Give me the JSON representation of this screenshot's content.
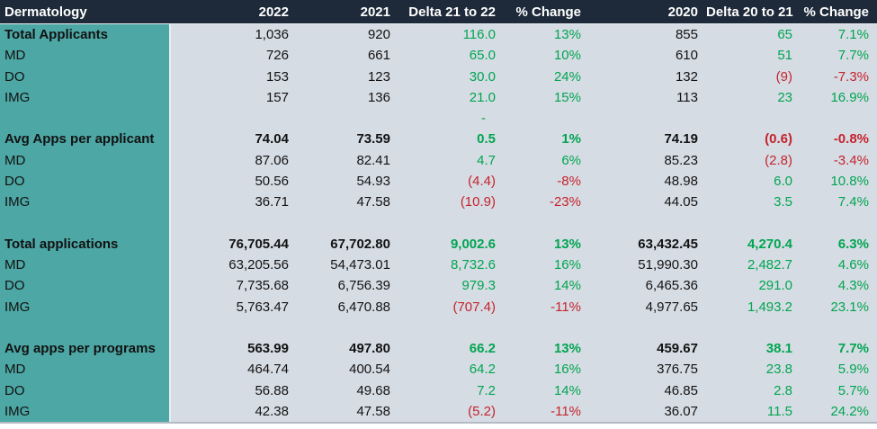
{
  "colors": {
    "header_bg": "#1E2A3A",
    "header_text": "#FFFFFF",
    "label_column_bg": "#4CA7A5",
    "body_bg": "#D6DCE4",
    "positive_text": "#00A550",
    "negative_text": "#C5232C",
    "default_text": "#121212"
  },
  "table": {
    "columns": [
      {
        "label": "Dermatology"
      },
      {
        "label": "2022"
      },
      {
        "label": "2021"
      },
      {
        "label": "Delta 21 to 22"
      },
      {
        "label": "% Change"
      },
      {
        "label": "2020"
      },
      {
        "label": "Delta 20 to 21"
      },
      {
        "label": "% Change"
      }
    ],
    "rows": [
      {
        "label": "Total Applicants",
        "lb": true,
        "vb": false,
        "cells": [
          [
            "1,036",
            "k"
          ],
          [
            "920",
            "k"
          ],
          [
            "116.0",
            "g"
          ],
          [
            "13%",
            "g"
          ],
          [
            "855",
            "k"
          ],
          [
            "65",
            "g"
          ],
          [
            "7.1%",
            "g"
          ]
        ]
      },
      {
        "label": "MD",
        "lb": false,
        "vb": false,
        "cells": [
          [
            "726",
            "k"
          ],
          [
            "661",
            "k"
          ],
          [
            "65.0",
            "g"
          ],
          [
            "10%",
            "g"
          ],
          [
            "610",
            "k"
          ],
          [
            "51",
            "g"
          ],
          [
            "7.7%",
            "g"
          ]
        ]
      },
      {
        "label": "DO",
        "lb": false,
        "vb": false,
        "cells": [
          [
            "153",
            "k"
          ],
          [
            "123",
            "k"
          ],
          [
            "30.0",
            "g"
          ],
          [
            "24%",
            "g"
          ],
          [
            "132",
            "k"
          ],
          [
            "(9)",
            "r"
          ],
          [
            "-7.3%",
            "r"
          ]
        ]
      },
      {
        "label": "IMG",
        "lb": false,
        "vb": false,
        "cells": [
          [
            "157",
            "k"
          ],
          [
            "136",
            "k"
          ],
          [
            "21.0",
            "g"
          ],
          [
            "15%",
            "g"
          ],
          [
            "113",
            "k"
          ],
          [
            "23",
            "g"
          ],
          [
            "16.9%",
            "g"
          ]
        ]
      },
      {
        "label": "",
        "lb": false,
        "vb": false,
        "cells": [
          [
            "",
            ""
          ],
          [
            "",
            ""
          ],
          [
            "-",
            "g"
          ],
          [
            "",
            ""
          ],
          [
            "",
            ""
          ],
          [
            "",
            ""
          ],
          [
            "",
            ""
          ]
        ]
      },
      {
        "label": "Avg Apps per applicant",
        "lb": true,
        "vb": true,
        "cells": [
          [
            "74.04",
            "k"
          ],
          [
            "73.59",
            "k"
          ],
          [
            "0.5",
            "g"
          ],
          [
            "1%",
            "g"
          ],
          [
            "74.19",
            "k"
          ],
          [
            "(0.6)",
            "r"
          ],
          [
            "-0.8%",
            "r"
          ]
        ]
      },
      {
        "label": "MD",
        "lb": false,
        "vb": false,
        "cells": [
          [
            "87.06",
            "k"
          ],
          [
            "82.41",
            "k"
          ],
          [
            "4.7",
            "g"
          ],
          [
            "6%",
            "g"
          ],
          [
            "85.23",
            "k"
          ],
          [
            "(2.8)",
            "r"
          ],
          [
            "-3.4%",
            "r"
          ]
        ]
      },
      {
        "label": "DO",
        "lb": false,
        "vb": false,
        "cells": [
          [
            "50.56",
            "k"
          ],
          [
            "54.93",
            "k"
          ],
          [
            "(4.4)",
            "r"
          ],
          [
            "-8%",
            "r"
          ],
          [
            "48.98",
            "k"
          ],
          [
            "6.0",
            "g"
          ],
          [
            "10.8%",
            "g"
          ]
        ]
      },
      {
        "label": "IMG",
        "lb": false,
        "vb": false,
        "cells": [
          [
            "36.71",
            "k"
          ],
          [
            "47.58",
            "k"
          ],
          [
            "(10.9)",
            "r"
          ],
          [
            "-23%",
            "r"
          ],
          [
            "44.05",
            "k"
          ],
          [
            "3.5",
            "g"
          ],
          [
            "7.4%",
            "g"
          ]
        ]
      },
      {
        "label": "",
        "lb": false,
        "vb": false,
        "cells": [
          [
            "",
            ""
          ],
          [
            "",
            ""
          ],
          [
            "",
            ""
          ],
          [
            "",
            ""
          ],
          [
            "",
            ""
          ],
          [
            "",
            ""
          ],
          [
            "",
            ""
          ]
        ]
      },
      {
        "label": "Total applications",
        "lb": true,
        "vb": true,
        "cells": [
          [
            "76,705.44",
            "k"
          ],
          [
            "67,702.80",
            "k"
          ],
          [
            "9,002.6",
            "g"
          ],
          [
            "13%",
            "g"
          ],
          [
            "63,432.45",
            "k"
          ],
          [
            "4,270.4",
            "g"
          ],
          [
            "6.3%",
            "g"
          ]
        ]
      },
      {
        "label": "MD",
        "lb": false,
        "vb": false,
        "cells": [
          [
            "63,205.56",
            "k"
          ],
          [
            "54,473.01",
            "k"
          ],
          [
            "8,732.6",
            "g"
          ],
          [
            "16%",
            "g"
          ],
          [
            "51,990.30",
            "k"
          ],
          [
            "2,482.7",
            "g"
          ],
          [
            "4.6%",
            "g"
          ]
        ]
      },
      {
        "label": "DO",
        "lb": false,
        "vb": false,
        "cells": [
          [
            "7,735.68",
            "k"
          ],
          [
            "6,756.39",
            "k"
          ],
          [
            "979.3",
            "g"
          ],
          [
            "14%",
            "g"
          ],
          [
            "6,465.36",
            "k"
          ],
          [
            "291.0",
            "g"
          ],
          [
            "4.3%",
            "g"
          ]
        ]
      },
      {
        "label": "IMG",
        "lb": false,
        "vb": false,
        "cells": [
          [
            "5,763.47",
            "k"
          ],
          [
            "6,470.88",
            "k"
          ],
          [
            "(707.4)",
            "r"
          ],
          [
            "-11%",
            "r"
          ],
          [
            "4,977.65",
            "k"
          ],
          [
            "1,493.2",
            "g"
          ],
          [
            "23.1%",
            "g"
          ]
        ]
      },
      {
        "label": "",
        "lb": false,
        "vb": false,
        "cells": [
          [
            "",
            ""
          ],
          [
            "",
            ""
          ],
          [
            "",
            ""
          ],
          [
            "",
            ""
          ],
          [
            "",
            ""
          ],
          [
            "",
            ""
          ],
          [
            "",
            ""
          ]
        ]
      },
      {
        "label": "Avg apps per programs",
        "lb": true,
        "vb": true,
        "cells": [
          [
            "563.99",
            "k"
          ],
          [
            "497.80",
            "k"
          ],
          [
            "66.2",
            "g"
          ],
          [
            "13%",
            "g"
          ],
          [
            "459.67",
            "k"
          ],
          [
            "38.1",
            "g"
          ],
          [
            "7.7%",
            "g"
          ]
        ]
      },
      {
        "label": "MD",
        "lb": false,
        "vb": false,
        "cells": [
          [
            "464.74",
            "k"
          ],
          [
            "400.54",
            "k"
          ],
          [
            "64.2",
            "g"
          ],
          [
            "16%",
            "g"
          ],
          [
            "376.75",
            "k"
          ],
          [
            "23.8",
            "g"
          ],
          [
            "5.9%",
            "g"
          ]
        ]
      },
      {
        "label": "DO",
        "lb": false,
        "vb": false,
        "cells": [
          [
            "56.88",
            "k"
          ],
          [
            "49.68",
            "k"
          ],
          [
            "7.2",
            "g"
          ],
          [
            "14%",
            "g"
          ],
          [
            "46.85",
            "k"
          ],
          [
            "2.8",
            "g"
          ],
          [
            "5.7%",
            "g"
          ]
        ]
      },
      {
        "label": "IMG",
        "lb": false,
        "vb": false,
        "cells": [
          [
            "42.38",
            "k"
          ],
          [
            "47.58",
            "k"
          ],
          [
            "(5.2)",
            "r"
          ],
          [
            "-11%",
            "r"
          ],
          [
            "36.07",
            "k"
          ],
          [
            "11.5",
            "g"
          ],
          [
            "24.2%",
            "g"
          ]
        ]
      }
    ]
  }
}
